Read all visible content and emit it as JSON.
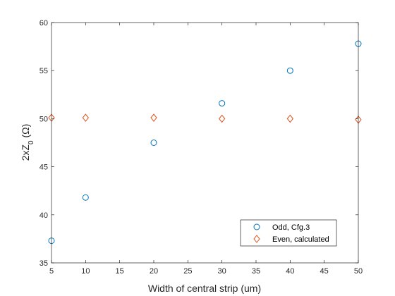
{
  "chart_data": {
    "type": "scatter",
    "title": "",
    "xlabel": "Width of central strip (um)",
    "ylabel_base": "2xZ",
    "ylabel_sub": "0",
    "ylabel_unit": " (Ω)",
    "xlim": [
      5,
      50
    ],
    "ylim": [
      35,
      60
    ],
    "xticks": [
      5,
      10,
      15,
      20,
      25,
      30,
      35,
      40,
      45,
      50
    ],
    "yticks": [
      35,
      40,
      45,
      50,
      55,
      60
    ],
    "grid": false,
    "box": true,
    "legend_position": "bottom-right",
    "series": [
      {
        "name": "Odd, Cfg.3",
        "marker": "circle",
        "color": "#0072BD",
        "x": [
          5,
          10,
          20,
          30,
          40,
          50
        ],
        "y": [
          37.3,
          41.8,
          47.5,
          51.6,
          55.0,
          57.8
        ]
      },
      {
        "name": "Even, calculated",
        "marker": "diamond",
        "color": "#D95319",
        "x": [
          5,
          10,
          20,
          30,
          40,
          50
        ],
        "y": [
          50.1,
          50.1,
          50.1,
          50.0,
          50.0,
          49.9
        ]
      }
    ]
  }
}
